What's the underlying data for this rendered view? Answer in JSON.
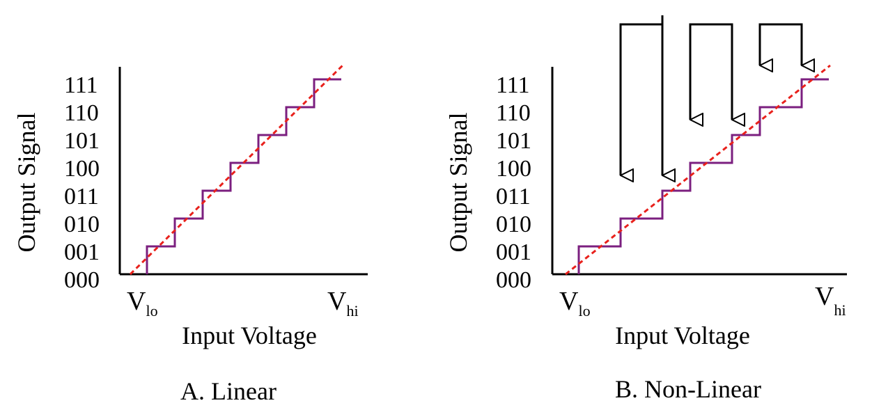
{
  "colors": {
    "staircase": "#7b1f7f",
    "ideal_line": "#e8211c",
    "axis": "#000000"
  },
  "panels": [
    {
      "caption": "A. Linear",
      "ylabel": "Output Signal",
      "xlabel": "Input Voltage",
      "y_ticks": [
        "000",
        "001",
        "010",
        "011",
        "100",
        "101",
        "110",
        "111"
      ],
      "v_lo": {
        "symbol": "V",
        "sub": "lo"
      },
      "v_hi": {
        "symbol": "V",
        "sub": "hi"
      }
    },
    {
      "caption": "B. Non-Linear",
      "ylabel": "Output Signal",
      "xlabel": "Input Voltage",
      "y_ticks": [
        "000",
        "001",
        "010",
        "011",
        "100",
        "101",
        "110",
        "111"
      ],
      "v_lo": {
        "symbol": "V",
        "sub": "lo"
      },
      "v_hi": {
        "symbol": "V",
        "sub": "hi"
      }
    }
  ]
}
